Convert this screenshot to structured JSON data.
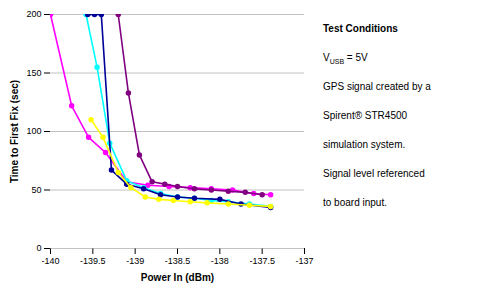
{
  "chart_data": {
    "type": "line",
    "xlabel": "Power In (dBm)",
    "ylabel": "Time to First Fix (sec)",
    "xlim": [
      -140,
      -137
    ],
    "ylim": [
      0,
      200
    ],
    "xticks": [
      -140,
      -139.5,
      -139,
      -138.5,
      -138,
      -137.5,
      -137
    ],
    "yticks": [
      0,
      50,
      100,
      150,
      200
    ],
    "grid": true,
    "marker": "circle",
    "series": [
      {
        "color": "#FF00FF",
        "x": [
          -140.0,
          -139.75,
          -139.55,
          -139.35,
          -139.1,
          -138.85,
          -138.6,
          -138.35,
          -138.1,
          -137.85,
          -137.6,
          -137.4
        ],
        "values": [
          200,
          122,
          95,
          82,
          57,
          54,
          53,
          52,
          51,
          50,
          47,
          46
        ]
      },
      {
        "color": "#00FFFF",
        "x": [
          -139.58,
          -139.45,
          -139.3,
          -139.1,
          -138.9,
          -138.7,
          -138.5,
          -138.3,
          -138.1,
          -137.9,
          -137.65,
          -137.4
        ],
        "values": [
          200,
          155,
          90,
          58,
          52,
          47,
          44,
          43,
          41,
          40,
          38,
          36
        ]
      },
      {
        "color": "#000099",
        "x": [
          -139.56,
          -139.48,
          -139.4,
          -139.28,
          -139.1,
          -138.9,
          -138.7,
          -138.5,
          -138.3,
          -138.0,
          -137.75,
          -137.4
        ],
        "values": [
          200,
          200,
          200,
          67,
          55,
          51,
          46,
          44,
          43,
          42,
          38,
          35
        ]
      },
      {
        "color": "#FFFF00",
        "x": [
          -139.52,
          -139.38,
          -139.2,
          -139.05,
          -138.88,
          -138.72,
          -138.55,
          -138.35,
          -138.15,
          -137.9,
          -137.65,
          -137.4
        ],
        "values": [
          110,
          95,
          65,
          52,
          44,
          42,
          41,
          40,
          39,
          38,
          37,
          36
        ]
      },
      {
        "color": "#800080",
        "x": [
          -139.2,
          -139.08,
          -138.95,
          -138.8,
          -138.65,
          -138.5,
          -138.3,
          -138.1,
          -137.9,
          -137.7,
          -137.5
        ],
        "values": [
          200,
          133,
          80,
          57,
          55,
          53,
          51,
          50,
          49,
          48,
          46
        ]
      }
    ],
    "annotations": [
      "Test Conditions",
      [
        {
          "text": "V"
        },
        {
          "text": "USB",
          "subscript": true
        },
        {
          "text": " = 5V"
        }
      ],
      "GPS signal created by a",
      "Spirent® STR4500",
      "simulation system.",
      "Signal level referenced",
      "to board input."
    ]
  }
}
